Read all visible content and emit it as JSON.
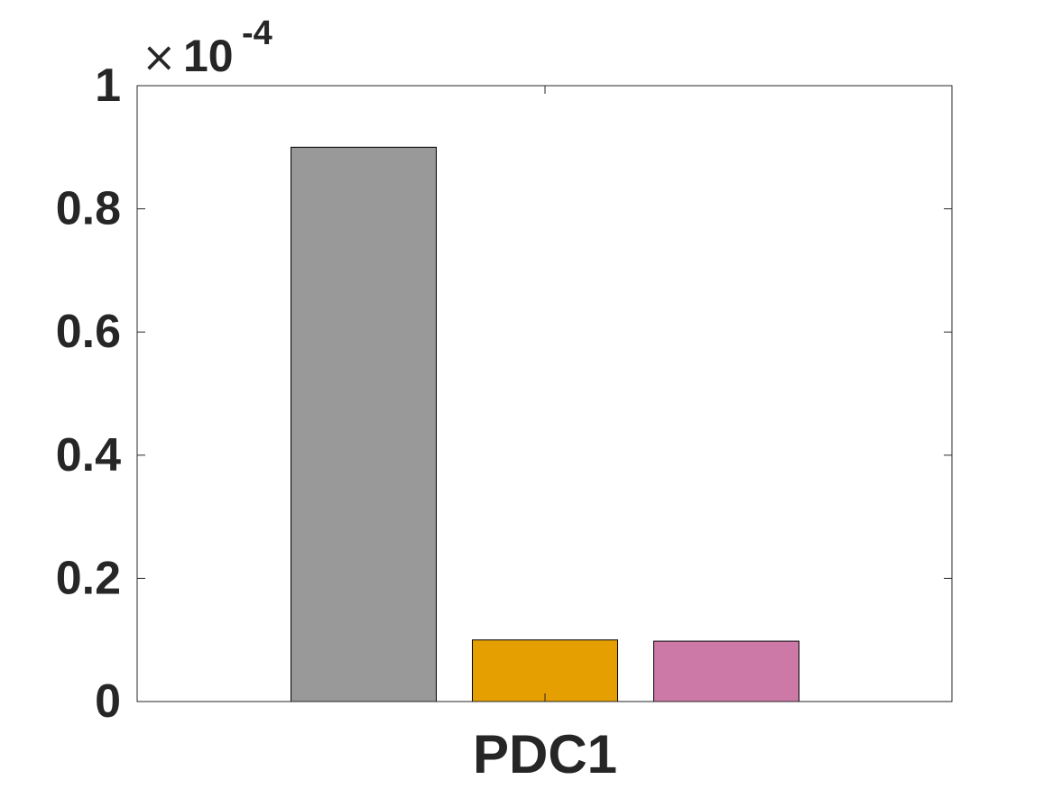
{
  "chart_data": {
    "type": "bar",
    "title": "",
    "xlabel": "",
    "ylabel": "",
    "categories": [
      "PDC1"
    ],
    "series": [
      {
        "values": [
          0.9
        ],
        "color": "#999999"
      },
      {
        "values": [
          0.1
        ],
        "color": "#e69f00"
      },
      {
        "values": [
          0.098
        ],
        "color": "#cc79a7"
      }
    ],
    "ylim": [
      0,
      1
    ],
    "yticks": [
      0,
      0.2,
      0.4,
      0.6,
      0.8,
      1
    ],
    "ytick_labels": [
      "0",
      "0.2",
      "0.4",
      "0.6",
      "0.8",
      "1"
    ],
    "y_multiplier": {
      "times": "×",
      "base": "10",
      "exponent": "-4"
    },
    "grid": false,
    "legend": "none"
  }
}
